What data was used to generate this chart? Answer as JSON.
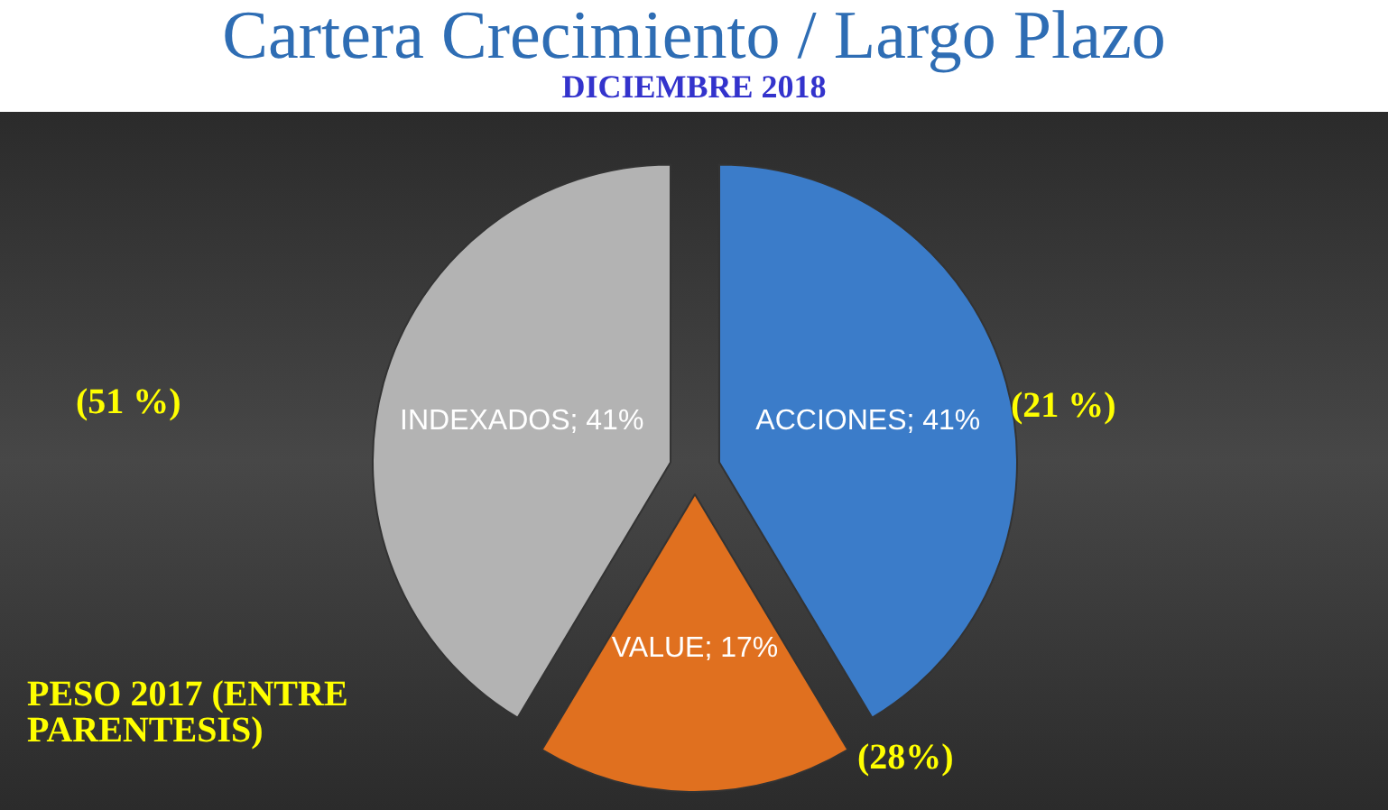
{
  "chart_data": {
    "type": "pie",
    "title": "Cartera Crecimiento / Largo Plazo",
    "subtitle": "DICIEMBRE 2018",
    "categories": [
      "ACCIONES",
      "VALUE",
      "INDEXADOS"
    ],
    "values": [
      41,
      17,
      41
    ],
    "value_labels": [
      "41%",
      "17%",
      "41%"
    ],
    "colors": [
      "#3b7cc9",
      "#e0701f",
      "#b3b3b3"
    ],
    "annotations": [
      "(21 %)",
      "(28%)",
      "(51 %)",
      "PESO 2017 (ENTRE PARENTESIS)"
    ],
    "legend": false
  }
}
